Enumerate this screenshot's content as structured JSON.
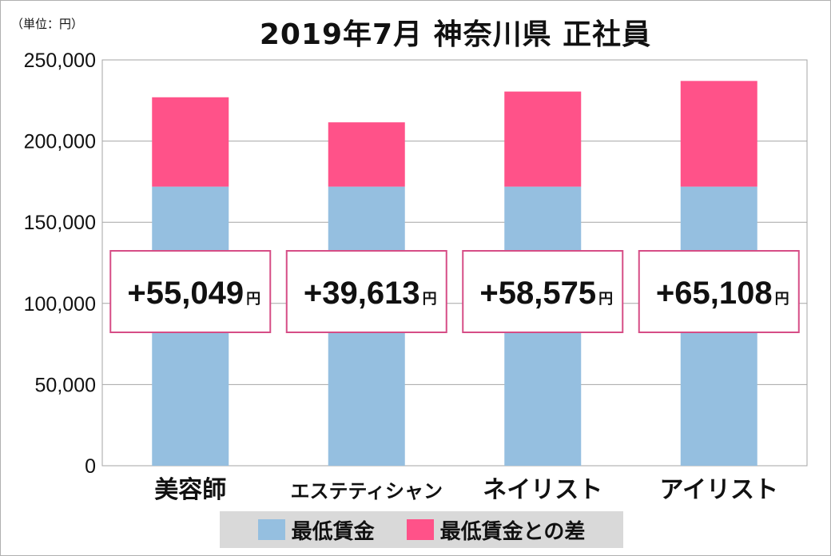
{
  "unit_label": "（単位：円）",
  "title": "2019年7月 神奈川県 正社員",
  "chart_data": {
    "type": "bar",
    "stacked": true,
    "categories": [
      "美容師",
      "エステティシャン",
      "ネイリスト",
      "アイリスト"
    ],
    "series": [
      {
        "name": "最低賃金",
        "values": [
          171936,
          171936,
          171936,
          171936
        ],
        "color": "#95bfe0"
      },
      {
        "name": "最低賃金との差",
        "values": [
          55049,
          39613,
          58575,
          65108
        ],
        "color": "#ff5289"
      }
    ],
    "difference_labels": [
      "+55,049",
      "+39,613",
      "+58,575",
      "+65,108"
    ],
    "difference_unit": "円",
    "ylim": [
      0,
      250000
    ],
    "yticks": [
      0,
      50000,
      100000,
      150000,
      200000,
      250000
    ],
    "ytick_labels": [
      "0",
      "50,000",
      "100,000",
      "150,000",
      "200,000",
      "250,000"
    ],
    "grid": true,
    "legend_position": "bottom",
    "callout_border_color": "#d64d86"
  }
}
